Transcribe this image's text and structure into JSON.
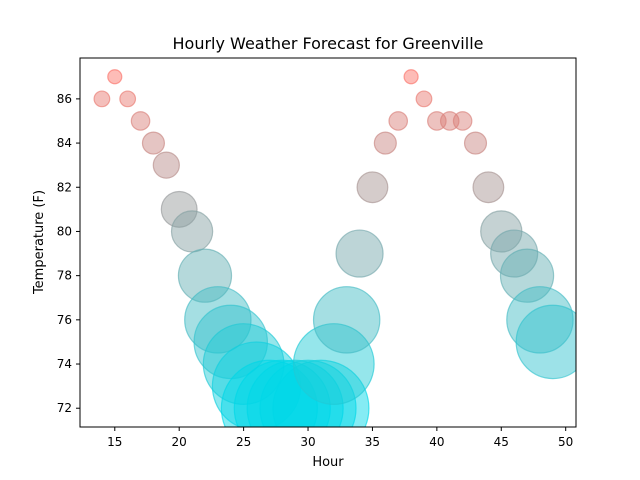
{
  "chart_data": {
    "type": "scatter",
    "title": "Hourly Weather Forecast for Greenville",
    "xlabel": "Hour",
    "ylabel": "Temperature (F)",
    "xlim": [
      12.3,
      50.8
    ],
    "ylim": [
      71.15,
      87.85
    ],
    "xticks": [
      15,
      20,
      25,
      30,
      35,
      40,
      45,
      50
    ],
    "yticks": [
      72,
      74,
      76,
      78,
      80,
      82,
      84,
      86
    ],
    "grid": false,
    "legend": "none",
    "colors": {
      "hot": "#fa7268",
      "cool": "#00d7e7"
    },
    "points": [
      {
        "x": 14,
        "y": 86
      },
      {
        "x": 15,
        "y": 87
      },
      {
        "x": 16,
        "y": 86
      },
      {
        "x": 17,
        "y": 85
      },
      {
        "x": 18,
        "y": 84
      },
      {
        "x": 19,
        "y": 83
      },
      {
        "x": 20,
        "y": 81
      },
      {
        "x": 21,
        "y": 80
      },
      {
        "x": 22,
        "y": 78
      },
      {
        "x": 23,
        "y": 76
      },
      {
        "x": 24,
        "y": 75
      },
      {
        "x": 25,
        "y": 74
      },
      {
        "x": 26,
        "y": 73
      },
      {
        "x": 27,
        "y": 72
      },
      {
        "x": 28,
        "y": 72
      },
      {
        "x": 29,
        "y": 72
      },
      {
        "x": 30,
        "y": 72
      },
      {
        "x": 31,
        "y": 72
      },
      {
        "x": 32,
        "y": 74
      },
      {
        "x": 33,
        "y": 76
      },
      {
        "x": 34,
        "y": 79
      },
      {
        "x": 35,
        "y": 82
      },
      {
        "x": 36,
        "y": 84
      },
      {
        "x": 37,
        "y": 85
      },
      {
        "x": 38,
        "y": 87
      },
      {
        "x": 39,
        "y": 86
      },
      {
        "x": 40,
        "y": 85
      },
      {
        "x": 41,
        "y": 85
      },
      {
        "x": 42,
        "y": 85
      },
      {
        "x": 43,
        "y": 84
      },
      {
        "x": 44,
        "y": 82
      },
      {
        "x": 45,
        "y": 80
      },
      {
        "x": 46,
        "y": 79
      },
      {
        "x": 47,
        "y": 78
      },
      {
        "x": 48,
        "y": 76
      },
      {
        "x": 49,
        "y": 75
      }
    ]
  }
}
